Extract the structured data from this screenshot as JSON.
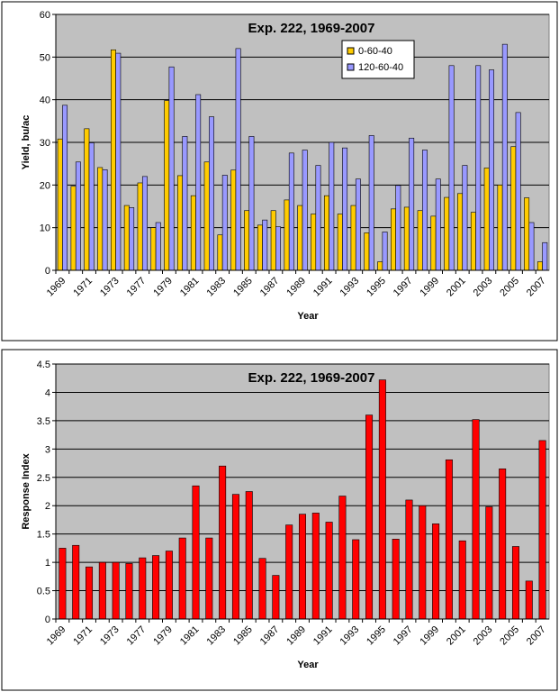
{
  "chart_data": [
    {
      "type": "bar",
      "title": "Exp. 222, 1969-2007",
      "x_label": "Year",
      "y_label": "Yield, bu/ac",
      "categories": [
        "1969",
        null,
        "1971",
        null,
        "1973",
        null,
        "1977",
        null,
        "1979",
        null,
        "1981",
        null,
        "1983",
        null,
        "1985",
        null,
        "1987",
        null,
        "1989",
        null,
        "1991",
        null,
        "1993",
        null,
        "1995",
        null,
        "1997",
        null,
        "1999",
        null,
        "2001",
        null,
        "2003",
        null,
        "2005",
        null,
        "2007"
      ],
      "series": [
        {
          "name": "0-60-40",
          "color": "#ffcc00",
          "values": [
            30.8,
            19.7,
            33.2,
            24.1,
            51.7,
            15.2,
            20.5,
            10,
            39.8,
            22.2,
            17.5,
            25.4,
            8.3,
            23.5,
            14,
            10.6,
            14,
            16.5,
            15.2,
            13.2,
            17.5,
            13.2,
            15.2,
            8.8,
            2,
            14.4,
            14.8,
            14,
            12.7,
            17.1,
            18,
            13.6,
            24,
            20,
            29,
            17,
            2
          ]
        },
        {
          "name": "120-60-40",
          "color": "#9999ff",
          "values": [
            38.7,
            25.4,
            29.9,
            23.6,
            50.9,
            14.7,
            22,
            11.2,
            47.7,
            31.4,
            41.2,
            36,
            22.3,
            52,
            31.4,
            11.8,
            10.2,
            27.5,
            28.2,
            24.6,
            30,
            28.7,
            21.4,
            31.6,
            9,
            19.9,
            31,
            28.2,
            21.4,
            48,
            24.6,
            48,
            47,
            53,
            37,
            11.2,
            6.5
          ]
        }
      ],
      "ylim": [
        0,
        60
      ],
      "yticks": [
        0,
        10,
        20,
        30,
        40,
        50,
        60
      ],
      "grid": true
    },
    {
      "type": "bar",
      "title": "Exp. 222, 1969-2007",
      "x_label": "Year",
      "y_label": "Response Index",
      "categories": [
        "1969",
        null,
        "1971",
        null,
        "1973",
        null,
        "1977",
        null,
        "1979",
        null,
        "1981",
        null,
        "1983",
        null,
        "1985",
        null,
        "1987",
        null,
        "1989",
        null,
        "1991",
        null,
        "1993",
        null,
        "1995",
        null,
        "1997",
        null,
        "1999",
        null,
        "2001",
        null,
        "2003",
        null,
        "2005",
        null,
        "2007"
      ],
      "series": [
        {
          "color": "#ff0000",
          "values": [
            1.25,
            1.3,
            0.92,
            1.0,
            1.0,
            0.98,
            1.08,
            1.12,
            1.2,
            1.43,
            2.35,
            1.43,
            2.7,
            2.2,
            2.25,
            1.07,
            0.77,
            1.66,
            1.85,
            1.87,
            1.71,
            2.17,
            1.4,
            3.6,
            4.22,
            1.41,
            2.1,
            2.0,
            1.68,
            2.81,
            1.38,
            3.52,
            1.98,
            2.65,
            1.28,
            0.67,
            3.15
          ]
        }
      ],
      "ylim": [
        0,
        4.5
      ],
      "yticks": [
        0,
        0.5,
        1,
        1.5,
        2,
        2.5,
        3,
        3.5,
        4,
        4.5
      ],
      "grid": true
    }
  ]
}
